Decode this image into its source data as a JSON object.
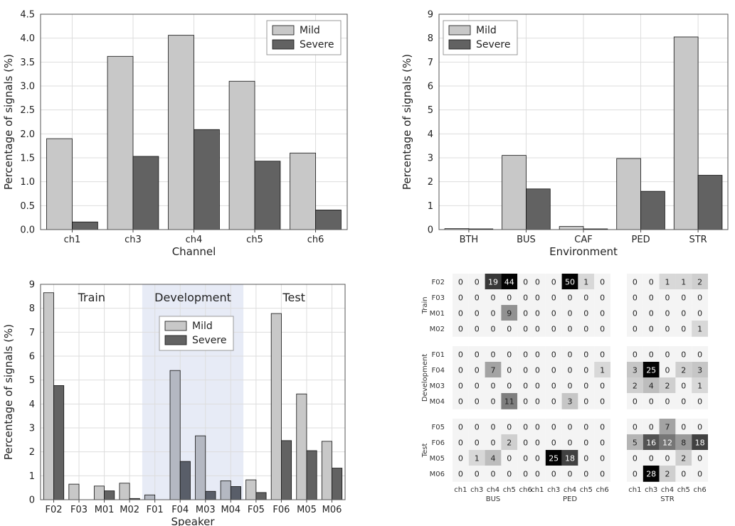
{
  "colors": {
    "mild": "#c8c8c8",
    "severe": "#626262",
    "dev_mild": "#b4b8c2",
    "dev_severe": "#595e69",
    "dev_band": "#e7ebf6",
    "grid": "#dddddd"
  },
  "chart_data": [
    {
      "type": "bar",
      "categories": [
        "ch1",
        "ch3",
        "ch4",
        "ch5",
        "ch6"
      ],
      "series": [
        {
          "name": "Mild",
          "values": [
            1.9,
            3.62,
            4.06,
            3.1,
            1.6
          ]
        },
        {
          "name": "Severe",
          "values": [
            0.16,
            1.53,
            2.09,
            1.43,
            0.41
          ]
        }
      ],
      "xlabel": "Channel",
      "ylabel": "Percentage of signals (%)",
      "ylim": [
        0,
        4.5
      ],
      "yticks": [
        "0.0",
        "0.5",
        "1.0",
        "1.5",
        "2.0",
        "2.5",
        "3.0",
        "3.5",
        "4.0",
        "4.5"
      ],
      "grid": true,
      "legend": "top-right"
    },
    {
      "type": "bar",
      "categories": [
        "BTH",
        "BUS",
        "CAF",
        "PED",
        "STR"
      ],
      "series": [
        {
          "name": "Mild",
          "values": [
            0.04,
            3.1,
            0.13,
            2.97,
            8.05
          ]
        },
        {
          "name": "Severe",
          "values": [
            0.03,
            1.7,
            0.03,
            1.6,
            2.27
          ]
        }
      ],
      "xlabel": "Environment",
      "ylabel": "Percentage of signals (%)",
      "ylim": [
        0,
        9
      ],
      "yticks": [
        "0",
        "1",
        "2",
        "3",
        "4",
        "5",
        "6",
        "7",
        "8",
        "9"
      ],
      "grid": true,
      "legend": "top-left"
    },
    {
      "type": "bar",
      "categories": [
        "F02",
        "F03",
        "M01",
        "M02",
        "F01",
        "F04",
        "M03",
        "M04",
        "F05",
        "F06",
        "M05",
        "M06"
      ],
      "series": [
        {
          "name": "Mild",
          "values": [
            8.65,
            0.65,
            0.57,
            0.69,
            0.2,
            5.4,
            2.67,
            0.79,
            0.83,
            7.78,
            4.42,
            2.44
          ]
        },
        {
          "name": "Severe",
          "values": [
            4.77,
            0,
            0.37,
            0.05,
            0,
            1.6,
            0.35,
            0.55,
            0.3,
            2.47,
            2.05,
            1.32
          ]
        }
      ],
      "xlabel": "Speaker",
      "ylabel": "Percentage of signals (%)",
      "ylim": [
        0,
        9
      ],
      "yticks": [
        "0",
        "1",
        "2",
        "3",
        "4",
        "5",
        "6",
        "7",
        "8",
        "9"
      ],
      "regions": [
        {
          "label": "Train",
          "from": 0,
          "to": 3
        },
        {
          "label": "Development",
          "from": 4,
          "to": 7
        },
        {
          "label": "Test",
          "from": 8,
          "to": 11
        }
      ],
      "grid": true,
      "legend": "top-center"
    },
    {
      "type": "heatmap",
      "rows": [
        "F02",
        "F03",
        "M01",
        "M02",
        "F01",
        "F04",
        "M03",
        "M04",
        "F05",
        "F06",
        "M05",
        "M06"
      ],
      "row_groups": [
        {
          "label": "Train",
          "rows": [
            0,
            3
          ]
        },
        {
          "label": "Development",
          "rows": [
            4,
            7
          ]
        },
        {
          "label": "Test",
          "rows": [
            8,
            11
          ]
        }
      ],
      "columns": [
        "ch1",
        "ch3",
        "ch4",
        "ch5",
        "ch6"
      ],
      "column_groups": [
        "BUS",
        "PED",
        "STR"
      ],
      "values": [
        [
          [
            0,
            0,
            19,
            44,
            0
          ],
          [
            0,
            0,
            50,
            1,
            0
          ],
          [
            0,
            0,
            1,
            1,
            2
          ]
        ],
        [
          [
            0,
            0,
            0,
            0,
            0
          ],
          [
            0,
            0,
            0,
            0,
            0
          ],
          [
            0,
            0,
            0,
            0,
            0
          ]
        ],
        [
          [
            0,
            0,
            0,
            9,
            0
          ],
          [
            0,
            0,
            0,
            0,
            0
          ],
          [
            0,
            0,
            0,
            0,
            0
          ]
        ],
        [
          [
            0,
            0,
            0,
            0,
            0
          ],
          [
            0,
            0,
            0,
            0,
            0
          ],
          [
            0,
            0,
            0,
            0,
            1
          ]
        ],
        [
          [
            0,
            0,
            0,
            0,
            0
          ],
          [
            0,
            0,
            0,
            0,
            0
          ],
          [
            0,
            0,
            0,
            0,
            0
          ]
        ],
        [
          [
            0,
            0,
            7,
            0,
            0
          ],
          [
            0,
            0,
            0,
            0,
            1
          ],
          [
            3,
            25,
            0,
            2,
            3
          ]
        ],
        [
          [
            0,
            0,
            0,
            0,
            0
          ],
          [
            0,
            0,
            0,
            0,
            0
          ],
          [
            2,
            4,
            2,
            0,
            1
          ]
        ],
        [
          [
            0,
            0,
            0,
            11,
            0
          ],
          [
            0,
            0,
            3,
            0,
            0
          ],
          [
            0,
            0,
            0,
            0,
            0
          ]
        ],
        [
          [
            0,
            0,
            0,
            0,
            0
          ],
          [
            0,
            0,
            0,
            0,
            0
          ],
          [
            0,
            0,
            7,
            0,
            0
          ]
        ],
        [
          [
            0,
            0,
            0,
            2,
            0
          ],
          [
            0,
            0,
            0,
            0,
            0
          ],
          [
            5,
            16,
            12,
            8,
            18
          ]
        ],
        [
          [
            0,
            1,
            4,
            0,
            0
          ],
          [
            0,
            25,
            18,
            0,
            0
          ],
          [
            0,
            0,
            0,
            2,
            0
          ]
        ],
        [
          [
            0,
            0,
            0,
            0,
            0
          ],
          [
            0,
            0,
            0,
            0,
            0
          ],
          [
            0,
            28,
            2,
            0,
            0
          ]
        ]
      ]
    }
  ]
}
